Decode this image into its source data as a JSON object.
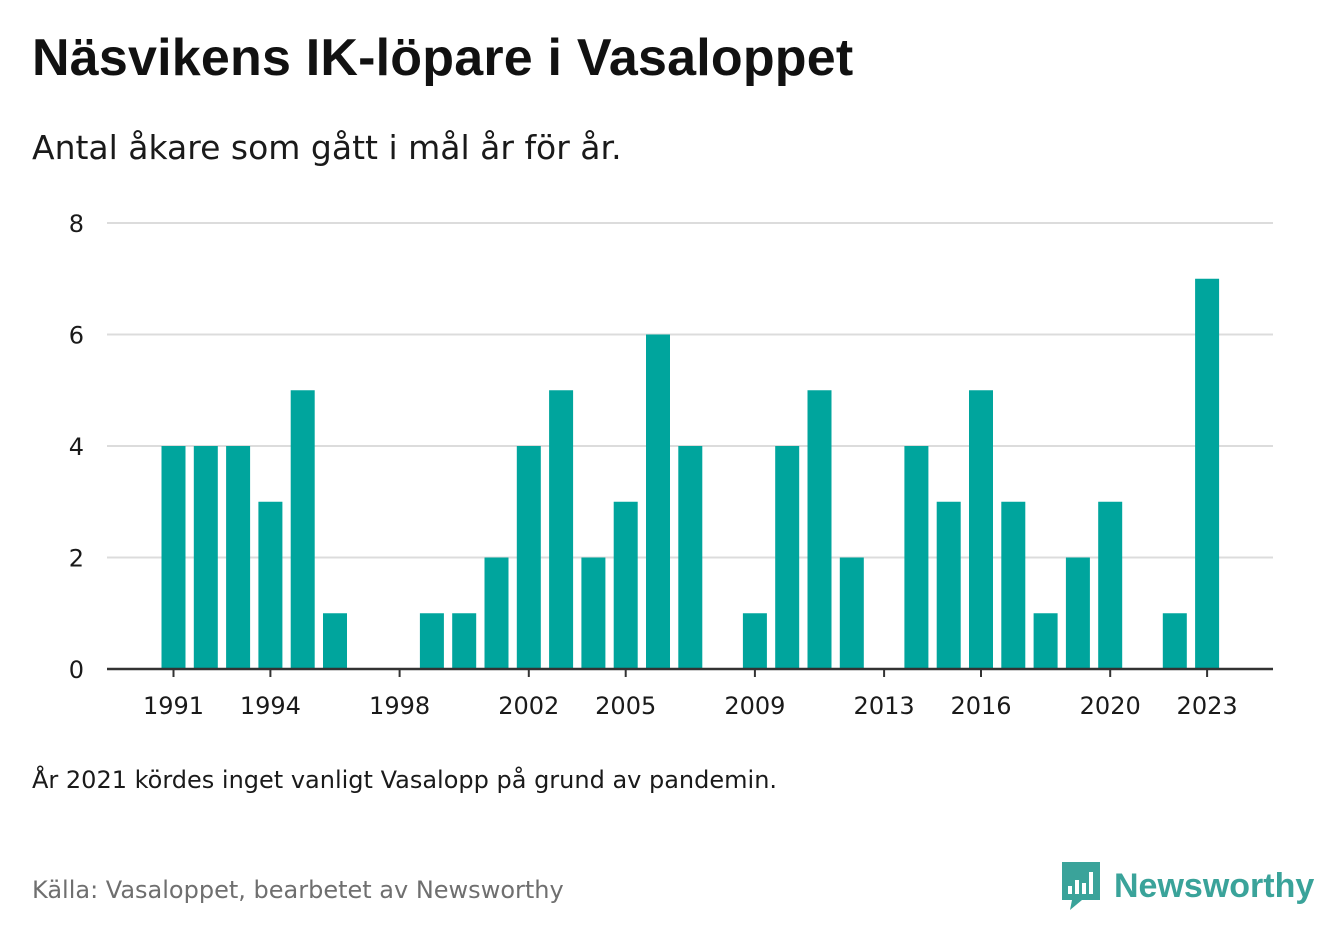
{
  "title": "Näsvikens IK-löpare i Vasaloppet",
  "subtitle": "Antal åkare som gått i mål år för år.",
  "note": "År 2021 kördes inget vanligt Vasalopp på grund av pandemin.",
  "source": "Källa: Vasaloppet, bearbetet av Newsworthy",
  "brand": {
    "name": "Newsworthy",
    "icon": "newsworthy-logo-icon"
  },
  "colors": {
    "bar": "#00a59d",
    "grid": "#dcdcdc",
    "axis": "#333333",
    "brand": "#3aa39a"
  },
  "chart_data": {
    "type": "bar",
    "categories": [
      "1991",
      "1992",
      "1993",
      "1994",
      "1995",
      "1996",
      "1997",
      "1998",
      "1999",
      "2000",
      "2001",
      "2002",
      "2003",
      "2004",
      "2005",
      "2006",
      "2007",
      "2008",
      "2009",
      "2010",
      "2011",
      "2012",
      "2013",
      "2014",
      "2015",
      "2016",
      "2017",
      "2018",
      "2019",
      "2020",
      "2021",
      "2022",
      "2023"
    ],
    "values": [
      4,
      4,
      4,
      3,
      5,
      1,
      0,
      0,
      1,
      1,
      2,
      4,
      5,
      2,
      3,
      6,
      4,
      0,
      1,
      4,
      5,
      2,
      0,
      4,
      3,
      5,
      3,
      1,
      2,
      3,
      0,
      1,
      7
    ],
    "x_tick_labels": [
      "1991",
      "1994",
      "1998",
      "2002",
      "2005",
      "2009",
      "2013",
      "2016",
      "2020",
      "2023"
    ],
    "y_ticks": [
      0,
      2,
      4,
      6,
      8
    ],
    "ylim": [
      0,
      8
    ],
    "grid": true,
    "legend": "none"
  }
}
